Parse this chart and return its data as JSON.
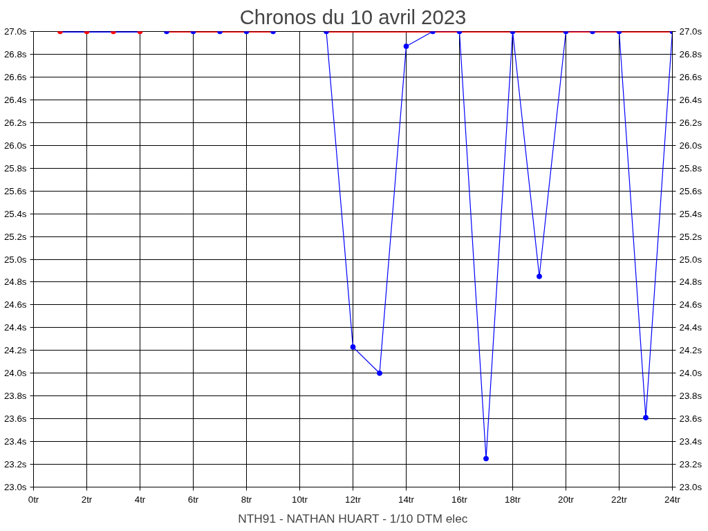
{
  "chart_data": {
    "type": "line",
    "title": "Chronos du 10 avril 2023",
    "annotations": [
      "NTH91 - NATHAN HUART - 1/10 DTM elec"
    ],
    "series": [
      {
        "x": [
          1,
          2,
          3,
          4
        ],
        "values": [
          27.0,
          27.0,
          27.0,
          27.0
        ],
        "color": "#0000ff",
        "colors": [
          "#ff0000",
          "#ff0000",
          "#ff0000",
          "#ff0000"
        ],
        "marker": "circle"
      },
      {
        "x": [
          5,
          6,
          7,
          8,
          9
        ],
        "values": [
          27.0,
          27.0,
          27.0,
          27.0,
          27.0
        ],
        "color": "#ff0000",
        "colors": [
          "#0000ff",
          "#0000ff",
          "#0000ff",
          "#0000ff",
          "#0000ff"
        ],
        "marker": "circle"
      },
      {
        "x": [
          11,
          12,
          13,
          14,
          15,
          16,
          17,
          18,
          19,
          20,
          21,
          22,
          23,
          24
        ],
        "values": [
          27.0,
          24.23,
          24.0,
          26.87,
          27.0,
          27.0,
          23.25,
          27.0,
          24.85,
          27.0,
          27.0,
          27.0,
          23.61,
          27.0
        ],
        "color": "#0000ff",
        "colors": [
          "#0000ff",
          "#0000ff",
          "#0000ff",
          "#0000ff",
          "#0000ff",
          "#0000ff",
          "#0000ff",
          "#0000ff",
          "#0000ff",
          "#0000ff",
          "#0000ff",
          "#0000ff",
          "#0000ff",
          "#0000ff"
        ],
        "marker": "circle"
      },
      {
        "x": [
          11,
          24
        ],
        "values": [
          27.0,
          27.0
        ],
        "color": "#ff0000",
        "marker": "none"
      }
    ],
    "xlim": [
      0,
      24
    ],
    "xticks": [
      {
        "value": 0,
        "label": "0tr"
      },
      {
        "value": 2,
        "label": "2tr"
      },
      {
        "value": 4,
        "label": "4tr"
      },
      {
        "value": 6,
        "label": "6tr"
      },
      {
        "value": 8,
        "label": "8tr"
      },
      {
        "value": 10,
        "label": "10tr"
      },
      {
        "value": 12,
        "label": "12tr"
      },
      {
        "value": 14,
        "label": "14tr"
      },
      {
        "value": 16,
        "label": "16tr"
      },
      {
        "value": 18,
        "label": "18tr"
      },
      {
        "value": 20,
        "label": "20tr"
      },
      {
        "value": 22,
        "label": "22tr"
      },
      {
        "value": 24,
        "label": "24tr"
      }
    ],
    "ylim": [
      23.0,
      27.0
    ],
    "yticks": [
      {
        "value": 23.0,
        "label": "23.0s"
      },
      {
        "value": 23.2,
        "label": "23.2s"
      },
      {
        "value": 23.4,
        "label": "23.4s"
      },
      {
        "value": 23.6,
        "label": "23.6s"
      },
      {
        "value": 23.8,
        "label": "23.8s"
      },
      {
        "value": 24.0,
        "label": "24.0s"
      },
      {
        "value": 24.2,
        "label": "24.2s"
      },
      {
        "value": 24.4,
        "label": "24.4s"
      },
      {
        "value": 24.6,
        "label": "24.6s"
      },
      {
        "value": 24.8,
        "label": "24.8s"
      },
      {
        "value": 25.0,
        "label": "25.0s"
      },
      {
        "value": 25.2,
        "label": "25.2s"
      },
      {
        "value": 25.4,
        "label": "25.4s"
      },
      {
        "value": 25.6,
        "label": "25.6s"
      },
      {
        "value": 25.8,
        "label": "25.8s"
      },
      {
        "value": 26.0,
        "label": "26.0s"
      },
      {
        "value": 26.2,
        "label": "26.2s"
      },
      {
        "value": 26.4,
        "label": "26.4s"
      },
      {
        "value": 26.6,
        "label": "26.6s"
      },
      {
        "value": 26.8,
        "label": "26.8s"
      },
      {
        "value": 27.0,
        "label": "27.0s"
      }
    ],
    "y2lim": [
      23.0,
      27.0
    ],
    "y2ticks": [
      {
        "value": 23.0,
        "label": "23.0s"
      },
      {
        "value": 23.2,
        "label": "23.2s"
      },
      {
        "value": 23.4,
        "label": "23.4s"
      },
      {
        "value": 23.6,
        "label": "23.6s"
      },
      {
        "value": 23.8,
        "label": "23.8s"
      },
      {
        "value": 24.0,
        "label": "24.0s"
      },
      {
        "value": 24.2,
        "label": "24.2s"
      },
      {
        "value": 24.4,
        "label": "24.4s"
      },
      {
        "value": 24.6,
        "label": "24.6s"
      },
      {
        "value": 24.8,
        "label": "24.8s"
      },
      {
        "value": 25.0,
        "label": "25.0s"
      },
      {
        "value": 25.2,
        "label": "25.2s"
      },
      {
        "value": 25.4,
        "label": "25.4s"
      },
      {
        "value": 25.6,
        "label": "25.6s"
      },
      {
        "value": 25.8,
        "label": "25.8s"
      },
      {
        "value": 26.0,
        "label": "26.0s"
      },
      {
        "value": 26.2,
        "label": "26.2s"
      },
      {
        "value": 26.4,
        "label": "26.4s"
      },
      {
        "value": 26.6,
        "label": "26.6s"
      },
      {
        "value": 26.8,
        "label": "26.8s"
      },
      {
        "value": 27.0,
        "label": "27.0s"
      }
    ],
    "grid": true,
    "legend": false
  }
}
